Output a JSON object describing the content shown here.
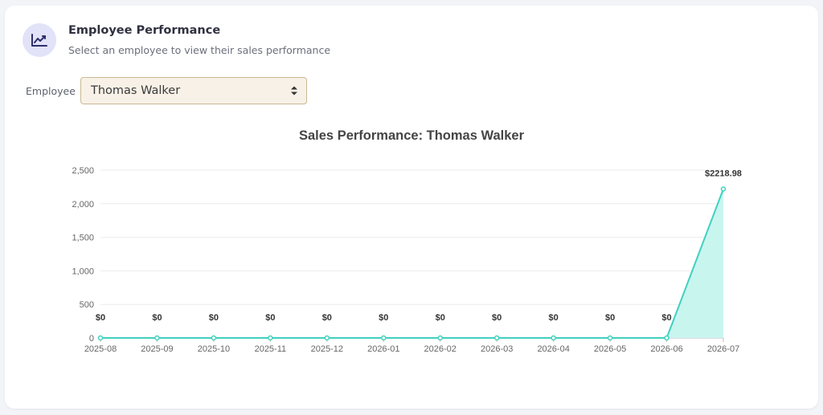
{
  "header": {
    "title": "Employee Performance",
    "subtitle": "Select an employee to view their sales performance",
    "icon": "chart-line-icon",
    "icon_color": "#2e2f6b",
    "icon_bg": "#e2e2f8"
  },
  "filter": {
    "label": "Employee",
    "selected": "Thomas Walker"
  },
  "chart_data": {
    "type": "area",
    "title": "Sales Performance: Thomas Walker",
    "xlabel": "",
    "ylabel": "",
    "categories": [
      "2025-08",
      "2025-09",
      "2025-10",
      "2025-11",
      "2025-12",
      "2026-01",
      "2026-02",
      "2026-03",
      "2026-04",
      "2026-05",
      "2026-06",
      "2026-07"
    ],
    "values": [
      0,
      0,
      0,
      0,
      0,
      0,
      0,
      0,
      0,
      0,
      0,
      2218.98
    ],
    "data_labels": [
      "$0",
      "$0",
      "$0",
      "$0",
      "$0",
      "$0",
      "$0",
      "$0",
      "$0",
      "$0",
      "$0",
      "$2218.98"
    ],
    "ylim": [
      0,
      2500
    ],
    "yticks": [
      0,
      500,
      1000,
      1500,
      2000,
      2500
    ],
    "ytick_labels": [
      "0",
      "500",
      "1,000",
      "1,500",
      "2,000",
      "2,500"
    ],
    "grid": true,
    "line_color": "#3fd1c0",
    "fill_color": "#c9f5ef"
  }
}
